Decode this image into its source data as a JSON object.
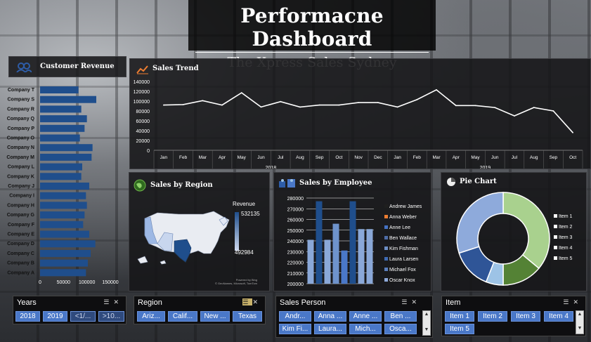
{
  "header": {
    "title": "Performacne Dashboard",
    "subtitle": "The Xpress Sales Sydney"
  },
  "panels": {
    "customer_revenue": "Customer Revenue",
    "sales_trend": "Sales Trend",
    "sales_by_region": "Sales by Region",
    "sales_by_employee": "Sales by Employee",
    "pie_chart": "Pie Chart"
  },
  "region_map": {
    "legend_title": "Revenue",
    "max_label": "532135",
    "min_label": "492984",
    "credit_line1": "Powered by Bing",
    "credit_line2": "© GeoNames, Microsoft, TomTom"
  },
  "slicers": {
    "years": {
      "title": "Years",
      "items": [
        "2018",
        "2019",
        "<1/...",
        ">10..."
      ]
    },
    "region": {
      "title": "Region",
      "items": [
        "Ariz...",
        "Calif...",
        "New ...",
        "Texas"
      ]
    },
    "sales_person": {
      "title": "Sales Person",
      "items": [
        "Andr...",
        "Anna ...",
        "Anne ...",
        "Ben ...",
        "Kim Fi...",
        "Laura...",
        "Mich...",
        "Osca..."
      ]
    },
    "item": {
      "title": "Item",
      "items": [
        "Item 1",
        "Item 2",
        "Item 3",
        "Item 4",
        "Item 5"
      ]
    }
  },
  "chart_data": [
    {
      "type": "bar",
      "orientation": "horizontal",
      "title": "Customer Revenue",
      "categories": [
        "Company T",
        "Company S",
        "Company R",
        "Company Q",
        "Company P",
        "Company O",
        "Company N",
        "Company M",
        "Company L",
        "Company K",
        "Company J",
        "Company I",
        "Company H",
        "Company G",
        "Company F",
        "Company E",
        "Company D",
        "Company C",
        "Company B",
        "Company A"
      ],
      "values": [
        82000,
        120000,
        88000,
        100000,
        95000,
        85000,
        112000,
        110000,
        90000,
        88000,
        105000,
        98000,
        100000,
        95000,
        92000,
        105000,
        118000,
        108000,
        102000,
        98000
      ],
      "xlim": [
        0,
        150000
      ],
      "xticks": [
        "0",
        "50000",
        "100000",
        "150000"
      ],
      "color": "#1f4e8c"
    },
    {
      "type": "line",
      "title": "Sales Trend",
      "x": [
        "Jan",
        "Feb",
        "Mar",
        "Apr",
        "May",
        "Jun",
        "Jul",
        "Aug",
        "Sep",
        "Oct",
        "Nov",
        "Dec",
        "Jan",
        "Feb",
        "Mar",
        "Apr",
        "May",
        "Jun",
        "Jul",
        "Aug",
        "Sep",
        "Oct"
      ],
      "x_groups": [
        {
          "label": "2018",
          "months": 12
        },
        {
          "label": "2019",
          "months": 10
        }
      ],
      "values": [
        92000,
        93000,
        101000,
        92000,
        117000,
        88000,
        99000,
        88000,
        92000,
        92000,
        97000,
        97000,
        88000,
        103000,
        123000,
        91000,
        91000,
        87000,
        70000,
        87000,
        80000,
        36000
      ],
      "ylim": [
        0,
        140000
      ],
      "yticks": [
        "0",
        "20000",
        "40000",
        "60000",
        "80000",
        "100000",
        "120000",
        "140000"
      ],
      "color": "#ffffff"
    },
    {
      "type": "bar",
      "title": "Sales by Employee",
      "categories": [
        "Andrew James",
        "Anna Weber",
        "Anne Lee",
        "Ben Wallace",
        "Kim Fishman",
        "Laura Larsen",
        "Michael Fox",
        "Oscar Knox"
      ],
      "values": [
        241000,
        277000,
        241000,
        256000,
        231000,
        277000,
        251000,
        251000
      ],
      "colors": [
        "#8aa8d8",
        "#1f4e8c",
        "#8aa8d8",
        "#6e93cc",
        "#4a78c8",
        "#1f4e8c",
        "#8aa8d8",
        "#8aa8d8"
      ],
      "legend": [
        "Andrew James",
        "Anna Weber",
        "Anne Lee",
        "Ben Wallace",
        "Kim Fishman",
        "Laura Larsen",
        "Michael Fox",
        "Oscar Knox"
      ],
      "legend_colors": [
        "#1f1f1f",
        "#ed7d31",
        "#4472c4",
        "#4e6ea8",
        "#6d8fc6",
        "#3f6bb5",
        "#5b7fbf",
        "#8eaadb"
      ],
      "ylim": [
        200000,
        280000
      ],
      "yticks": [
        "200000",
        "210000",
        "220000",
        "230000",
        "240000",
        "250000",
        "260000",
        "270000",
        "280000"
      ]
    },
    {
      "type": "pie",
      "title": "Pie Chart",
      "labels": [
        "Item 1",
        "Item 2",
        "Item 3",
        "Item 4",
        "Item 5"
      ],
      "values": [
        36,
        14,
        6,
        14,
        30
      ],
      "colors": [
        "#a9d18e",
        "#548235",
        "#9dc3e6",
        "#2f5597",
        "#8eaadb"
      ]
    }
  ]
}
